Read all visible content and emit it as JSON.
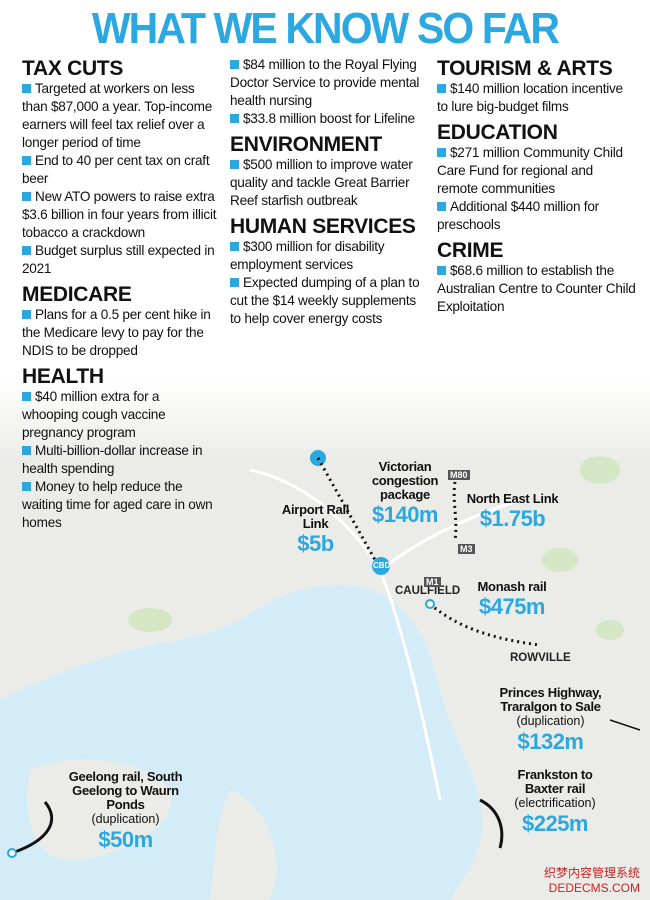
{
  "title": "WHAT WE KNOW SO FAR",
  "columns": [
    [
      {
        "heading": "TAX CUTS",
        "items": [
          "Targeted at workers on less than $87,000 a year. Top-income earners will feel tax relief over a longer period of time",
          "End to 40 per cent tax on craft beer",
          "New ATO powers to raise extra $3.6 billion in four years from illicit tobacco a crackdown",
          "Budget surplus still expected in 2021"
        ]
      },
      {
        "heading": "MEDICARE",
        "items": [
          "Plans for a 0.5 per cent hike in the Medicare levy to pay for the NDIS to be dropped"
        ]
      },
      {
        "heading": "HEALTH",
        "items": [
          "$40 million extra for a whooping cough vaccine pregnancy program",
          "Multi-billion-dollar increase in health spending",
          "Money to help reduce the waiting time for aged care in own homes"
        ]
      }
    ],
    [
      {
        "items": [
          "$84 million to the Royal Flying Doctor Service to provide mental health nursing",
          "$33.8 million boost for Lifeline"
        ]
      },
      {
        "heading": "ENVIRONMENT",
        "items": [
          "$500 million to improve water quality and tackle Great Barrier Reef starfish outbreak"
        ]
      },
      {
        "heading": "HUMAN SERVICES",
        "items": [
          "$300 million for disability employment services",
          "Expected dumping of a plan to cut the $14 weekly supplements to help cover energy costs"
        ]
      }
    ],
    [
      {
        "heading": "TOURISM & ARTS",
        "items": [
          "$140 million location incentive to lure big-budget films"
        ]
      },
      {
        "heading": "EDUCATION",
        "items": [
          "$271 million Community Child Care Fund for regional and remote communities",
          "Additional $440 million for preschools"
        ]
      },
      {
        "heading": "CRIME",
        "items": [
          "$68.6 million to establish the Australian Centre to Counter Child Exploitation"
        ]
      }
    ]
  ],
  "projects": [
    {
      "name": "Airport Rail Link",
      "amount": "$5b"
    },
    {
      "name": "Victorian congestion package",
      "amount": "$140m"
    },
    {
      "name": "North East Link",
      "amount": "$1.75b"
    },
    {
      "name": "Monash rail",
      "amount": "$475m"
    },
    {
      "name": "Princes Highway, Traralgon to Sale",
      "note": "(duplication)",
      "amount": "$132m"
    },
    {
      "name": "Frankston to Baxter rail",
      "note": "(electrification)",
      "amount": "$225m"
    },
    {
      "name": "Geelong rail, South Geelong to Waurn Ponds",
      "note": "(duplication)",
      "amount": "$50m"
    }
  ],
  "places": [
    "CBD",
    "CAULFIELD",
    "ROWVILLE",
    "M80",
    "M3",
    "M1"
  ],
  "watermark": [
    "织梦内容管理系统",
    "DEDECMS.COM"
  ]
}
